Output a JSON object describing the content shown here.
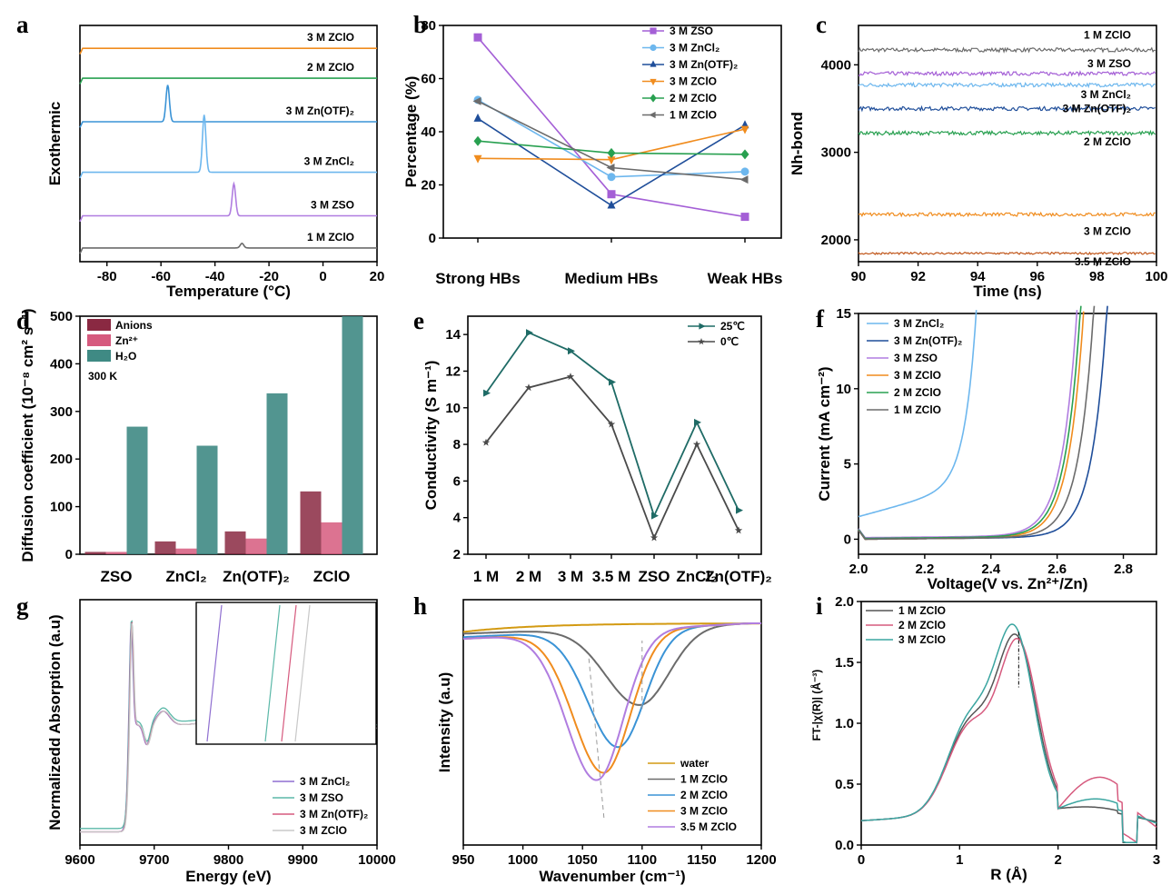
{
  "colors": {
    "orange": "#f08c1e",
    "green": "#28a050",
    "blue": "#3a93d6",
    "lightblue": "#6db7ee",
    "navy": "#1f4e9a",
    "purple": "#a45fd6",
    "violet": "#b07de0",
    "gray": "#6b6b6b",
    "darkorange": "#c0561a",
    "teal": "#3aa5a0",
    "pink": "#d65a7e",
    "maroon": "#8a2942",
    "teal_bar": "#3f8a84",
    "gold": "#d39a12"
  },
  "panels": [
    {
      "key": "a",
      "label": "a",
      "chart_data": {
        "type": "line",
        "xlabel": "Temperature (°C)",
        "ylabel": "Exothermic",
        "xlim": [
          -90,
          20
        ],
        "xticks": [
          -80,
          -60,
          -40,
          -20,
          0,
          20
        ],
        "series": [
          {
            "name": "3 M ZClO",
            "color": "orange",
            "offset": 9.0,
            "peak": null
          },
          {
            "name": "2 M ZClO",
            "color": "green",
            "offset": 7.7,
            "peak": null
          },
          {
            "name": "3 M Zn(OTF)₂",
            "color": "blue",
            "offset": 5.8,
            "peak": {
              "x": -57.5,
              "height": 1.6
            }
          },
          {
            "name": "3 M ZnCl₂",
            "color": "lightblue",
            "offset": 3.6,
            "peak": {
              "x": -44,
              "height": 2.5
            }
          },
          {
            "name": "3 M ZSO",
            "color": "violet",
            "offset": 1.7,
            "peak": {
              "x": -33,
              "height": 1.4
            }
          },
          {
            "name": "1 M ZClO",
            "color": "gray",
            "offset": 0.3,
            "peak": {
              "x": -30,
              "height": 0.2
            }
          }
        ]
      }
    },
    {
      "key": "b",
      "label": "b",
      "chart_data": {
        "type": "line",
        "xlabel": "",
        "ylabel": "Percentage (%)",
        "categories": [
          "Strong HBs",
          "Medium HBs",
          "Weak HBs"
        ],
        "ylim": [
          0,
          80
        ],
        "yticks": [
          0,
          20,
          40,
          60,
          80
        ],
        "series": [
          {
            "name": "3 M ZSO",
            "color": "purple",
            "marker": "square",
            "values": [
              75.5,
              16.5,
              8
            ]
          },
          {
            "name": "3 M ZnCl₂",
            "color": "lightblue",
            "marker": "circle",
            "values": [
              52,
              23,
              25
            ]
          },
          {
            "name": "3 M Zn(OTF)₂",
            "color": "navy",
            "marker": "triangle",
            "values": [
              45,
              12.3,
              42.5
            ]
          },
          {
            "name": "3 M ZClO",
            "color": "orange",
            "marker": "tri-down",
            "values": [
              30,
              29.5,
              41
            ]
          },
          {
            "name": "2 M ZClO",
            "color": "green",
            "marker": "diamond",
            "values": [
              36.5,
              32,
              31.5
            ]
          },
          {
            "name": "1 M ZClO",
            "color": "gray",
            "marker": "tri-left",
            "values": [
              51.5,
              26.5,
              22
            ]
          }
        ]
      }
    },
    {
      "key": "c",
      "label": "c",
      "chart_data": {
        "type": "line",
        "xlabel": "Time (ns)",
        "ylabel": "Nh-bond",
        "xlim": [
          90,
          100
        ],
        "xticks": [
          90,
          92,
          94,
          96,
          98,
          100
        ],
        "ylim": [
          1750,
          4450
        ],
        "yticks": [
          2000,
          3000,
          4000
        ],
        "series": [
          {
            "name": "1 M ZClO",
            "color": "gray",
            "mean": 4170,
            "noise": 22
          },
          {
            "name": "3 M ZSO",
            "color": "purple",
            "mean": 3900,
            "noise": 22
          },
          {
            "name": "3 M ZnCl₂",
            "color": "lightblue",
            "mean": 3770,
            "noise": 22
          },
          {
            "name": "3 M Zn(OTF)₂",
            "color": "navy",
            "mean": 3500,
            "noise": 22
          },
          {
            "name": "2 M ZClO",
            "color": "green",
            "mean": 3220,
            "noise": 22
          },
          {
            "name": "3 M ZClO",
            "color": "orange",
            "mean": 2290,
            "noise": 20
          },
          {
            "name": "3.5 M ZClO",
            "color": "darkorange",
            "mean": 1845,
            "noise": 12
          }
        ]
      }
    },
    {
      "key": "d",
      "label": "d",
      "chart_data": {
        "type": "bar",
        "ylabel": "Diffusion coefficient (10⁻⁸ cm² s⁻¹)",
        "categories": [
          "ZSO",
          "ZnCl₂",
          "Zn(OTF)₂",
          "ZClO"
        ],
        "ylim": [
          0,
          500
        ],
        "yticks": [
          0,
          100,
          200,
          300,
          400,
          500
        ],
        "annotation": "300 K",
        "series": [
          {
            "name": "Anions",
            "color": "maroon",
            "values": [
              5,
              27,
              48,
              132
            ]
          },
          {
            "name": "Zn²⁺",
            "color": "pink",
            "values": [
              5,
              12,
              33,
              67
            ]
          },
          {
            "name": "H₂O",
            "color": "teal_bar",
            "values": [
              268,
              228,
              338,
              500
            ]
          }
        ]
      }
    },
    {
      "key": "e",
      "label": "e",
      "chart_data": {
        "type": "line",
        "ylabel": "Conductivity (S m⁻¹)",
        "categories": [
          "1 M",
          "2 M",
          "3 M",
          "3.5 M",
          "ZSO",
          "ZnCl₂",
          "Zn(OTF)₂"
        ],
        "ylim": [
          2,
          15
        ],
        "yticks": [
          2,
          4,
          6,
          8,
          10,
          12,
          14
        ],
        "series": [
          {
            "name": "25℃",
            "color": "#1f6b66",
            "marker": "tri-right",
            "values": [
              10.8,
              14.1,
              13.1,
              11.4,
              4.1,
              9.2,
              4.4
            ]
          },
          {
            "name": "0℃",
            "color": "#4a4a4a",
            "marker": "star",
            "values": [
              8.1,
              11.1,
              11.7,
              9.1,
              2.9,
              8.0,
              3.3
            ]
          }
        ]
      }
    },
    {
      "key": "f",
      "label": "f",
      "chart_data": {
        "type": "line",
        "xlabel": "Voltage(V vs. Zn²⁺/Zn)",
        "ylabel": "Current (mA cm⁻²)",
        "xlim": [
          2.0,
          2.9
        ],
        "xticks": [
          2.0,
          2.2,
          2.4,
          2.6,
          2.8
        ],
        "ylim": [
          -1,
          15
        ],
        "yticks": [
          0,
          5,
          10,
          15
        ],
        "series": [
          {
            "name": "3 M ZnCl₂",
            "color": "lightblue",
            "onset": 2.36,
            "base": 1.5
          },
          {
            "name": "3 M Zn(OTF)₂",
            "color": "navy",
            "onset": 2.75,
            "base": 0
          },
          {
            "name": "3 M ZSO",
            "color": "violet",
            "onset": 2.66,
            "base": 0.1
          },
          {
            "name": "3 M ZClO",
            "color": "orange",
            "onset": 2.68,
            "base": 0
          },
          {
            "name": "2 M ZClO",
            "color": "green",
            "onset": 2.67,
            "base": 0.05
          },
          {
            "name": "1 M ZClO",
            "color": "gray",
            "onset": 2.71,
            "base": 0
          }
        ]
      }
    },
    {
      "key": "g",
      "label": "g",
      "chart_data": {
        "type": "line",
        "xlabel": "Energy (eV)",
        "ylabel": "Normalizedd Absorption (a.u)",
        "xlim": [
          9600,
          10000
        ],
        "xticks": [
          9600,
          9700,
          9800,
          9900,
          10000
        ],
        "series": [
          {
            "name": "3 M ZnCl₂",
            "color": "#8f6fd0"
          },
          {
            "name": "3 M ZSO",
            "color": "#5bb8a8"
          },
          {
            "name": "3 M Zn(OTF)₂",
            "color": "#d65a7e"
          },
          {
            "name": "3 M ZClO",
            "color": "#c8c8c8"
          }
        ]
      }
    },
    {
      "key": "h",
      "label": "h",
      "chart_data": {
        "type": "line",
        "xlabel": "Wavenumber (cm⁻¹)",
        "ylabel": "Intensity (a.u)",
        "xlim": [
          950,
          1200
        ],
        "xticks": [
          950,
          1000,
          1050,
          1100,
          1150,
          1200
        ],
        "series": [
          {
            "name": "water",
            "color": "gold",
            "center": 1000,
            "depth": 0.05
          },
          {
            "name": "1 M ZClO",
            "color": "gray",
            "center": 1098,
            "depth": 0.45
          },
          {
            "name": "2 M ZClO",
            "color": "blue",
            "center": 1080,
            "depth": 0.68
          },
          {
            "name": "3 M ZClO",
            "color": "orange",
            "center": 1068,
            "depth": 0.82
          },
          {
            "name": "3.5 M ZClO",
            "color": "violet",
            "center": 1062,
            "depth": 0.86
          }
        ]
      }
    },
    {
      "key": "i",
      "label": "i",
      "chart_data": {
        "type": "line",
        "xlabel": "R (Å)",
        "ylabel": "FT-|χ(R)| (Å⁻³)",
        "xlim": [
          0,
          3
        ],
        "xticks": [
          0,
          1,
          2,
          3
        ],
        "ylim": [
          0,
          2.0
        ],
        "yticks": [
          0.0,
          0.5,
          1.0,
          1.5,
          2.0
        ],
        "series": [
          {
            "name": "1 M ZClO",
            "color": "#555555"
          },
          {
            "name": "2 M ZClO",
            "color": "#d65a7e"
          },
          {
            "name": "3 M ZClO",
            "color": "#3aa5a0"
          }
        ]
      }
    }
  ]
}
